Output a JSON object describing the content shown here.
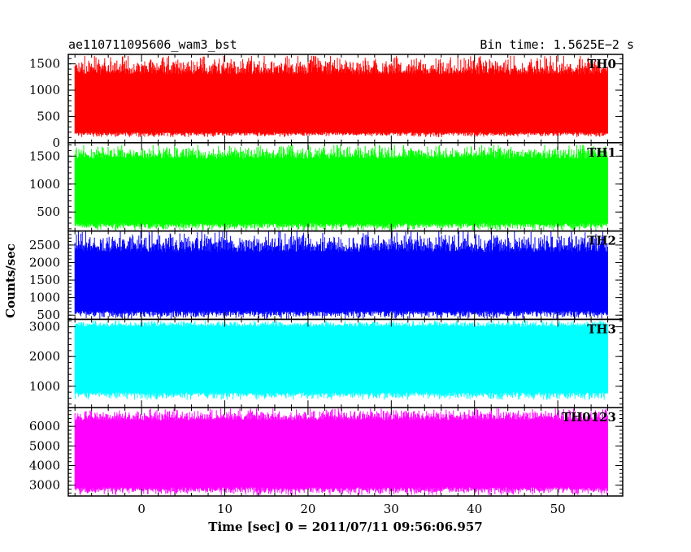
{
  "chart_data": {
    "type": "line",
    "title": "ae110711095606_wam3_bst",
    "bin_time_label": "Bin time: 1.5625E−2 s",
    "xlabel": "Time [sec] 0 = 2011/07/11 09:56:06.957",
    "ylabel": "Counts/sec",
    "xlim": [
      -8.8,
      57.8
    ],
    "x_data_range": [
      -8,
      56
    ],
    "x_ticks": [
      0,
      10,
      20,
      30,
      40,
      50
    ],
    "x_tick_labels": [
      "0",
      "10",
      "20",
      "30",
      "40",
      "50"
    ],
    "panels": [
      {
        "name": "TH0",
        "color": "#ff0000",
        "ylim": [
          0,
          1680
        ],
        "y_ticks": [
          0,
          500,
          1000,
          1500
        ],
        "y_tick_labels": [
          "0",
          "500",
          "1000",
          "1500"
        ],
        "mean": 740,
        "typical_band": [
          200,
          1300
        ],
        "extreme_range": [
          110,
          1650
        ]
      },
      {
        "name": "TH1",
        "color": "#00ff00",
        "ylim": [
          160,
          1740
        ],
        "y_ticks": [
          500,
          1000,
          1500
        ],
        "y_tick_labels": [
          "500",
          "1000",
          "1500"
        ],
        "mean": 860,
        "typical_band": [
          300,
          1450
        ],
        "extreme_range": [
          170,
          1700
        ]
      },
      {
        "name": "TH2",
        "color": "#0000ff",
        "ylim": [
          380,
          2900
        ],
        "y_ticks": [
          500,
          1000,
          1500,
          2000,
          2500
        ],
        "y_tick_labels": [
          "500",
          "1000",
          "1500",
          "2000",
          "2500"
        ],
        "mean": 1450,
        "typical_band": [
          620,
          2300
        ],
        "extreme_range": [
          400,
          2880
        ]
      },
      {
        "name": "TH3",
        "color": "#00ffff",
        "ylim": [
          280,
          3250
        ],
        "y_ticks": [
          1000,
          2000,
          3000
        ],
        "y_tick_labels": [
          "1000",
          "2000",
          "3000"
        ],
        "mean": 2000,
        "typical_band": [
          800,
          3000
        ],
        "extreme_range": [
          550,
          3200
        ]
      },
      {
        "name": "TH0123",
        "color": "#ff00ff",
        "ylim": [
          2450,
          6950
        ],
        "y_ticks": [
          3000,
          4000,
          5000,
          6000
        ],
        "y_tick_labels": [
          "3000",
          "4000",
          "5000",
          "6000"
        ],
        "mean": 4350,
        "typical_band": [
          2900,
          6300
        ],
        "extreme_range": [
          2500,
          6900
        ]
      }
    ]
  }
}
